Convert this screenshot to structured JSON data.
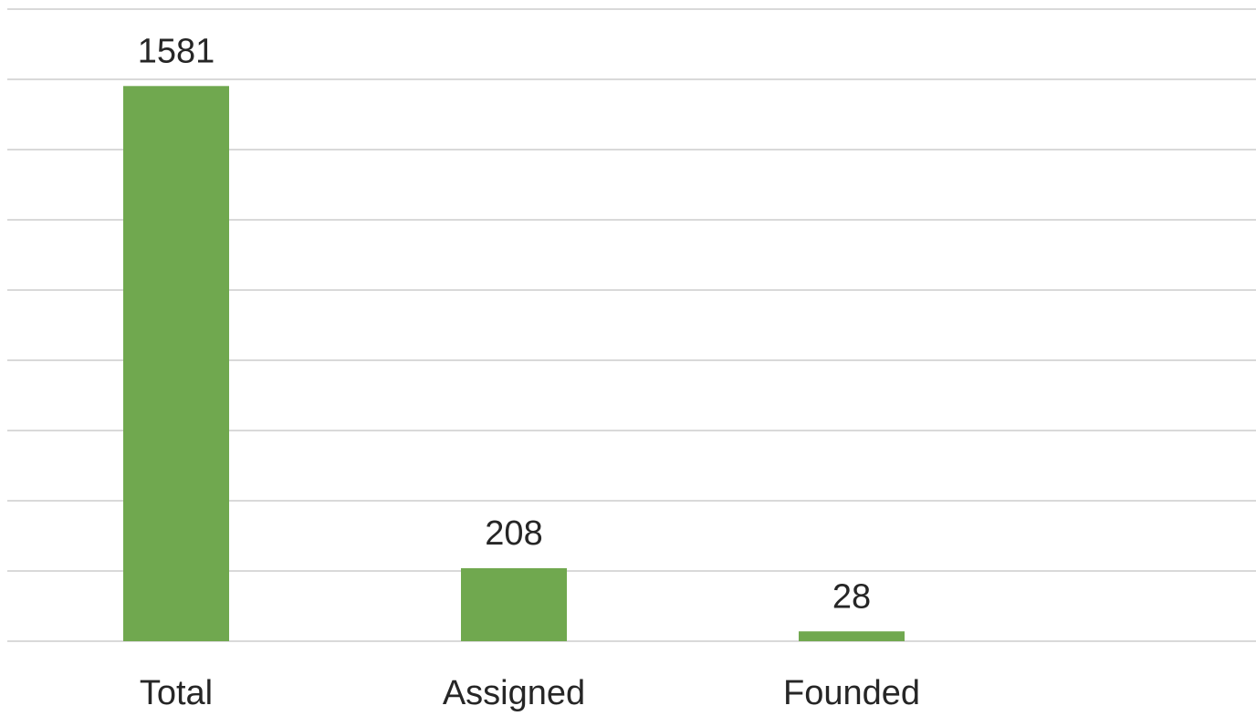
{
  "chart_data": {
    "type": "bar",
    "categories": [
      "Total",
      "Assigned",
      "Founded"
    ],
    "values": [
      1581,
      208,
      28
    ],
    "color": "#70a84f",
    "ylim": [
      0,
      1800
    ],
    "yticks": [
      0,
      200,
      400,
      600,
      800,
      1000,
      1200,
      1400,
      1600,
      1800
    ],
    "grid": true
  }
}
